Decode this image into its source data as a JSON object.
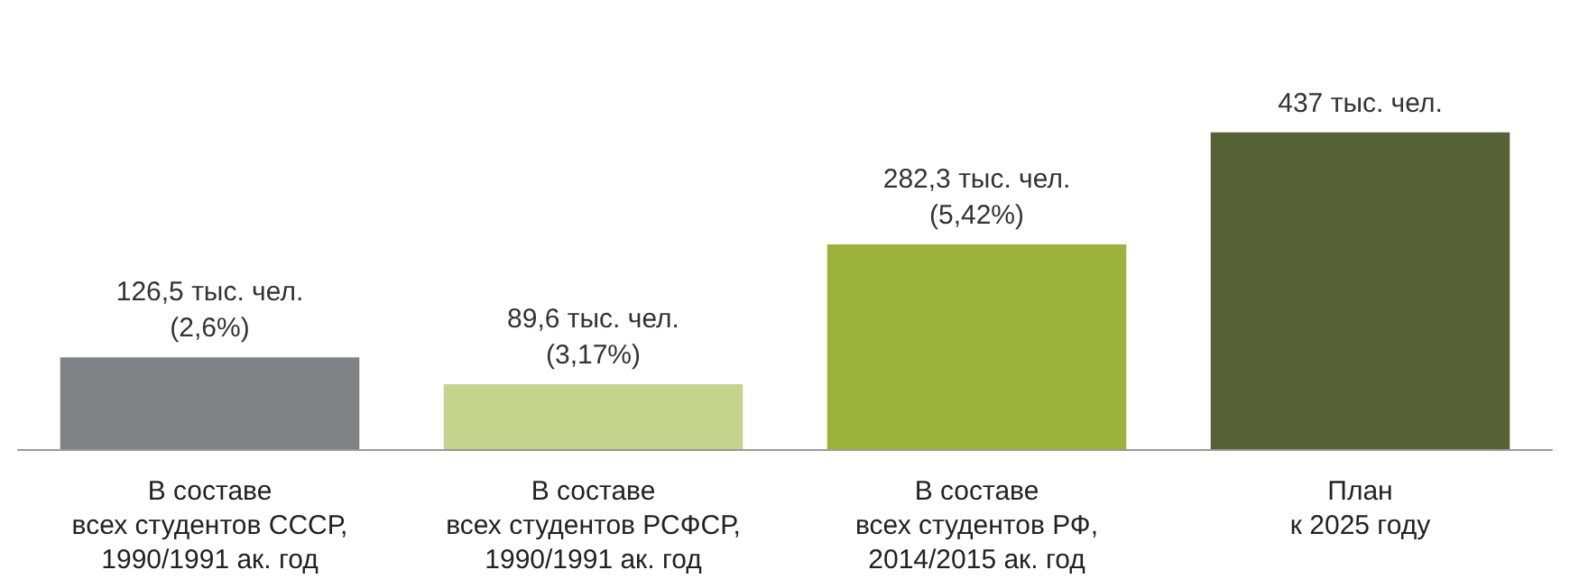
{
  "chart_data": {
    "type": "bar",
    "categories": [
      "В составе\nвсех студентов СССР,\n1990/1991 ак. год",
      "В составе\nвсех студентов РСФСР,\n1990/1991 ак. год",
      "В составе\nвсех студентов РФ,\n2014/2015 ак. год",
      "План\nк 2025 году"
    ],
    "values": [
      126.5,
      89.6,
      282.3,
      437
    ],
    "colors": [
      "#808285",
      "#c5d48c",
      "#9cb23b",
      "#566235"
    ],
    "value_labels": [
      "126,5 тыс. чел.\n(2,6%)",
      "89,6 тыс. чел.\n(3,17%)",
      "282,3 тыс. чел.\n(5,42%)",
      "437 тыс. чел."
    ]
  }
}
